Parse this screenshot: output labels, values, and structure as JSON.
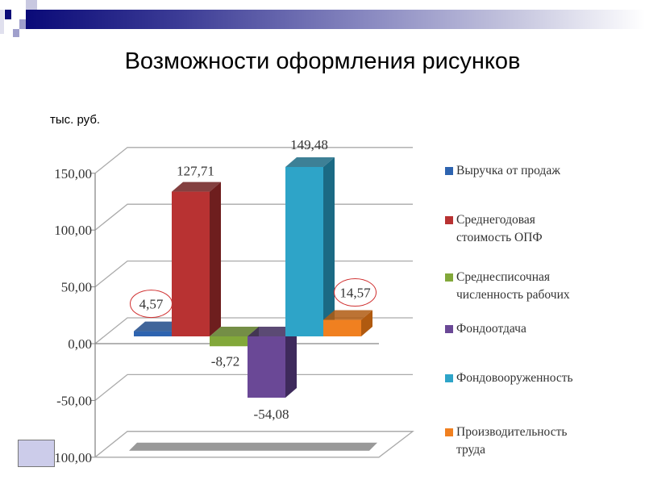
{
  "slide": {
    "title": "Возможности оформления рисунков",
    "unit_label": "тыс. руб."
  },
  "chart_data": {
    "type": "bar",
    "title": "Возможности оформления рисунков",
    "ylabel": "тыс. руб.",
    "xlabel": "",
    "ylim": [
      -100,
      150
    ],
    "y_ticks": [
      "150,00",
      "100,00",
      "50,00",
      "0,00",
      "-50,00",
      "-100,00"
    ],
    "y_tick_values": [
      150,
      100,
      50,
      0,
      -50,
      -100
    ],
    "grid": true,
    "legend_position": "right",
    "series": [
      {
        "name": "Выручка от продаж",
        "legend": "Выручка от продаж",
        "value": 4.57,
        "label": "4,57",
        "color": "#2e64b0",
        "side": "#1f4a88",
        "circled": true
      },
      {
        "name": "Среднегодовая стоимость ОПФ",
        "legend": "Среднегодовая\nстоимость ОПФ",
        "value": 127.71,
        "label": "127,71",
        "color": "#b83232",
        "side": "#6e1e1e",
        "circled": false
      },
      {
        "name": "Среднесписочная численность рабочих",
        "legend": "Среднесписочная\nчисленность рабочих",
        "value": -8.72,
        "label": "-8,72",
        "color": "#82a83a",
        "side": "#5c7a26",
        "circled": false
      },
      {
        "name": "Фондоотдача",
        "legend": "Фондоотдача",
        "value": -54.08,
        "label": "-54,08",
        "color": "#6a4896",
        "side": "#3e2a5c",
        "circled": false
      },
      {
        "name": "Фондовооруженность",
        "legend": "Фондовооруженность",
        "value": 149.48,
        "label": "149,48",
        "color": "#2ea4c8",
        "side": "#1b6a84",
        "circled": false
      },
      {
        "name": "Производительность труда",
        "legend": "Производительность\nтруда",
        "value": 14.57,
        "label": "14,57",
        "color": "#f08020",
        "side": "#b05a10",
        "circled": true
      }
    ]
  }
}
